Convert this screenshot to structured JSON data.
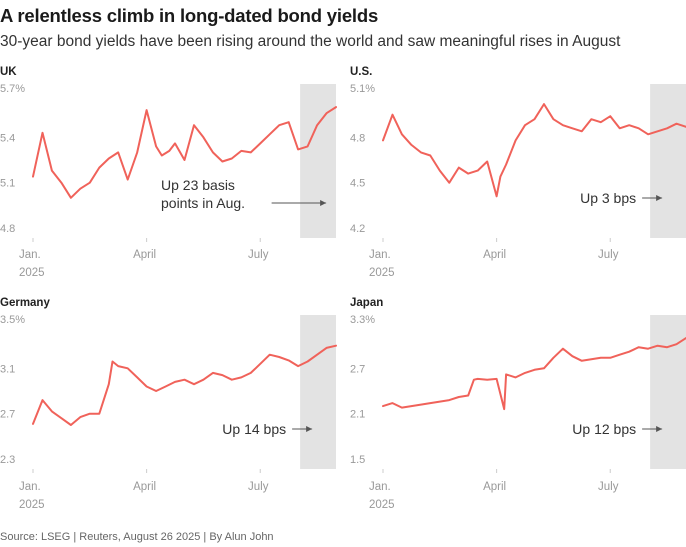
{
  "header": {
    "title": "A relentless climb in long-dated bond yields",
    "subtitle": "30-year bond yields have been rising around the world and saw meaningful rises in August"
  },
  "footer": {
    "source": "Source: LSEG | Reuters, August 26 2025 | By Alun John"
  },
  "colors": {
    "line": "#f0625a",
    "shade": "#e3e3e3",
    "tick": "#cccccc"
  },
  "chart_data": [
    {
      "type": "line",
      "title": "UK",
      "x_tick_labels": [
        [
          "Jan.",
          "2025"
        ],
        [
          "April"
        ],
        [
          "July"
        ]
      ],
      "x_tick_months": [
        1,
        4,
        7
      ],
      "x_range_months": [
        1,
        9
      ],
      "shaded_month_range": [
        8,
        9
      ],
      "y_ticks": [
        4.8,
        5.1,
        5.4,
        5.7
      ],
      "y_tick_labels": [
        "4.8",
        "5.1",
        "5.4",
        "5.7%"
      ],
      "ylim": [
        4.8,
        5.7
      ],
      "annotation": [
        "Up 23 basis",
        "points in Aug."
      ],
      "x": [
        1.0,
        1.25,
        1.5,
        1.75,
        2.0,
        2.25,
        2.5,
        2.75,
        3.0,
        3.25,
        3.5,
        3.75,
        4.0,
        4.25,
        4.4,
        4.6,
        4.75,
        5.0,
        5.25,
        5.5,
        5.75,
        6.0,
        6.25,
        6.5,
        6.75,
        7.0,
        7.25,
        7.5,
        7.75,
        8.0,
        8.25,
        8.5,
        8.75,
        9.0
      ],
      "y": [
        5.14,
        5.43,
        5.18,
        5.1,
        5.0,
        5.06,
        5.1,
        5.2,
        5.26,
        5.3,
        5.12,
        5.3,
        5.58,
        5.34,
        5.28,
        5.31,
        5.36,
        5.25,
        5.48,
        5.4,
        5.3,
        5.24,
        5.26,
        5.31,
        5.3,
        5.36,
        5.42,
        5.48,
        5.5,
        5.32,
        5.34,
        5.48,
        5.56,
        5.6
      ]
    },
    {
      "type": "line",
      "title": "U.S.",
      "x_tick_labels": [
        [
          "Jan.",
          "2025"
        ],
        [
          "April"
        ],
        [
          "July"
        ]
      ],
      "x_tick_months": [
        1,
        4,
        7
      ],
      "x_range_months": [
        1,
        9
      ],
      "shaded_month_range": [
        8,
        9
      ],
      "y_ticks": [
        4.2,
        4.5,
        4.8,
        5.1
      ],
      "y_tick_labels": [
        "4.2",
        "4.5",
        "4.8",
        "5.1%"
      ],
      "ylim": [
        4.2,
        5.1
      ],
      "annotation": [
        "Up 3 bps"
      ],
      "x": [
        1.0,
        1.25,
        1.5,
        1.75,
        2.0,
        2.25,
        2.5,
        2.75,
        3.0,
        3.25,
        3.5,
        3.75,
        4.0,
        4.1,
        4.25,
        4.5,
        4.75,
        5.0,
        5.25,
        5.5,
        5.75,
        6.0,
        6.25,
        6.5,
        6.75,
        7.0,
        7.25,
        7.5,
        7.75,
        8.0,
        8.25,
        8.5,
        8.75,
        9.0
      ],
      "y": [
        4.78,
        4.95,
        4.82,
        4.75,
        4.7,
        4.68,
        4.58,
        4.5,
        4.6,
        4.56,
        4.58,
        4.64,
        4.41,
        4.54,
        4.62,
        4.78,
        4.88,
        4.92,
        5.02,
        4.92,
        4.88,
        4.86,
        4.84,
        4.92,
        4.9,
        4.94,
        4.86,
        4.88,
        4.86,
        4.82,
        4.84,
        4.86,
        4.89,
        4.87
      ]
    },
    {
      "type": "line",
      "title": "Germany",
      "x_tick_labels": [
        [
          "Jan.",
          "2025"
        ],
        [
          "April"
        ],
        [
          "July"
        ]
      ],
      "x_tick_months": [
        1,
        4,
        7
      ],
      "x_range_months": [
        1,
        9
      ],
      "shaded_month_range": [
        8,
        9
      ],
      "y_ticks": [
        2.3,
        2.7,
        3.1,
        3.5
      ],
      "y_tick_labels": [
        "2.3",
        "2.7",
        "3.1",
        "3.5%"
      ],
      "ylim": [
        2.3,
        3.5
      ],
      "annotation": [
        "Up 14 bps"
      ],
      "x": [
        1.0,
        1.25,
        1.5,
        1.75,
        2.0,
        2.25,
        2.5,
        2.75,
        3.0,
        3.1,
        3.25,
        3.5,
        3.75,
        4.0,
        4.25,
        4.5,
        4.75,
        5.0,
        5.25,
        5.5,
        5.75,
        6.0,
        6.25,
        6.5,
        6.75,
        7.0,
        7.25,
        7.5,
        7.75,
        8.0,
        8.25,
        8.5,
        8.75,
        9.0
      ],
      "y": [
        2.61,
        2.82,
        2.72,
        2.66,
        2.6,
        2.67,
        2.7,
        2.7,
        2.96,
        3.16,
        3.12,
        3.1,
        3.02,
        2.94,
        2.9,
        2.94,
        2.98,
        3.0,
        2.96,
        3.0,
        3.06,
        3.04,
        3.0,
        3.02,
        3.06,
        3.14,
        3.22,
        3.2,
        3.17,
        3.12,
        3.16,
        3.22,
        3.28,
        3.3
      ]
    },
    {
      "type": "line",
      "title": "Japan",
      "x_tick_labels": [
        [
          "Jan.",
          "2025"
        ],
        [
          "April"
        ],
        [
          "July"
        ]
      ],
      "x_tick_months": [
        1,
        4,
        7
      ],
      "x_range_months": [
        1,
        9
      ],
      "shaded_month_range": [
        8,
        9
      ],
      "y_ticks": [
        1.5,
        2.1,
        2.7,
        3.3
      ],
      "y_tick_labels": [
        "1.5",
        "2.1",
        "2.7",
        "3.3%"
      ],
      "ylim": [
        1.5,
        3.3
      ],
      "annotation": [
        "Up 12 bps"
      ],
      "x": [
        1.0,
        1.25,
        1.5,
        1.75,
        2.0,
        2.25,
        2.5,
        2.75,
        3.0,
        3.25,
        3.4,
        3.5,
        3.75,
        4.0,
        4.2,
        4.25,
        4.5,
        4.75,
        5.0,
        5.25,
        5.5,
        5.75,
        6.0,
        6.25,
        6.5,
        6.75,
        7.0,
        7.25,
        7.5,
        7.75,
        8.0,
        8.25,
        8.5,
        8.75,
        9.0
      ],
      "y": [
        2.2,
        2.24,
        2.18,
        2.2,
        2.22,
        2.24,
        2.26,
        2.28,
        2.32,
        2.34,
        2.55,
        2.56,
        2.55,
        2.56,
        2.16,
        2.62,
        2.58,
        2.64,
        2.68,
        2.7,
        2.84,
        2.96,
        2.86,
        2.8,
        2.82,
        2.84,
        2.84,
        2.88,
        2.92,
        2.98,
        2.96,
        3.0,
        2.98,
        3.02,
        3.1
      ]
    }
  ]
}
